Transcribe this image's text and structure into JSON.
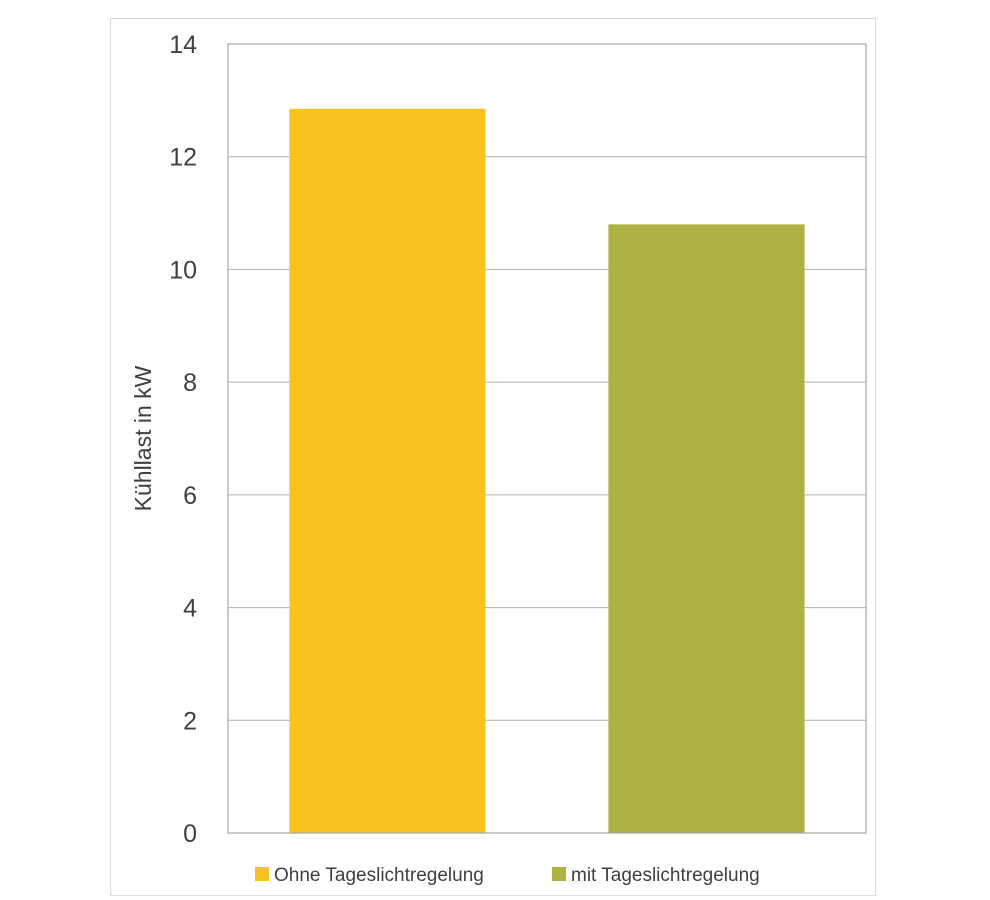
{
  "chart_data": {
    "type": "bar",
    "title": "",
    "xlabel": "",
    "ylabel": "Kühllast in kW",
    "ylim": [
      0,
      14
    ],
    "y_ticks": [
      0,
      2,
      4,
      6,
      8,
      10,
      12,
      14
    ],
    "grid": true,
    "legend_position": "bottom",
    "series": [
      {
        "name": "Ohne Tageslichtregelung",
        "value": 12.85,
        "color": "#F9C122"
      },
      {
        "name": "mit Tageslichtregelung",
        "value": 10.8,
        "color": "#ACB343"
      }
    ]
  }
}
